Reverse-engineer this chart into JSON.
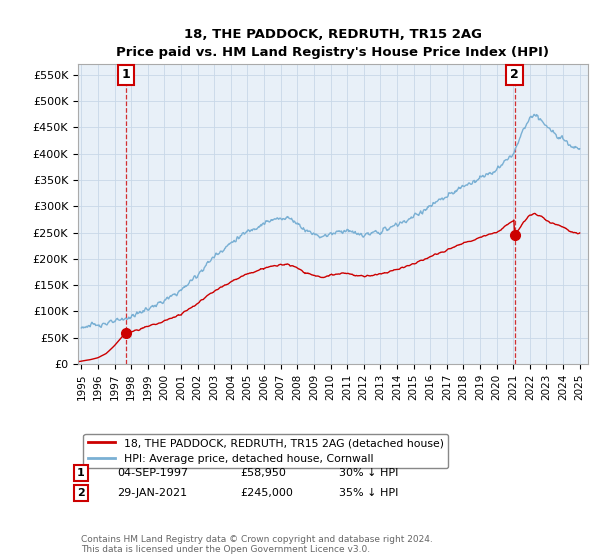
{
  "title": "18, THE PADDOCK, REDRUTH, TR15 2AG",
  "subtitle": "Price paid vs. HM Land Registry's House Price Index (HPI)",
  "ylabel_ticks": [
    "£0",
    "£50K",
    "£100K",
    "£150K",
    "£200K",
    "£250K",
    "£300K",
    "£350K",
    "£400K",
    "£450K",
    "£500K",
    "£550K"
  ],
  "ytick_values": [
    0,
    50000,
    100000,
    150000,
    200000,
    250000,
    300000,
    350000,
    400000,
    450000,
    500000,
    550000
  ],
  "ylim": [
    0,
    570000
  ],
  "xlim_start": 1994.8,
  "xlim_end": 2025.5,
  "sale1": {
    "date_num": 1997.67,
    "price": 58950,
    "label": "1",
    "date_str": "04-SEP-1997",
    "price_str": "£58,950",
    "hpi_str": "30% ↓ HPI"
  },
  "sale2": {
    "date_num": 2021.08,
    "price": 245000,
    "label": "2",
    "date_str": "29-JAN-2021",
    "price_str": "£245,000",
    "hpi_str": "35% ↓ HPI"
  },
  "hpi_color": "#7ab0d4",
  "price_color": "#cc0000",
  "annotation_color": "#cc0000",
  "grid_color": "#c8d8e8",
  "plot_bg_color": "#e8f0f8",
  "legend_label_red": "18, THE PADDOCK, REDRUTH, TR15 2AG (detached house)",
  "legend_label_blue": "HPI: Average price, detached house, Cornwall",
  "footer": "Contains HM Land Registry data © Crown copyright and database right 2024.\nThis data is licensed under the Open Government Licence v3.0.",
  "xtick_years": [
    1995,
    1996,
    1997,
    1998,
    1999,
    2000,
    2001,
    2002,
    2003,
    2004,
    2005,
    2006,
    2007,
    2008,
    2009,
    2010,
    2011,
    2012,
    2013,
    2014,
    2015,
    2016,
    2017,
    2018,
    2019,
    2020,
    2021,
    2022,
    2023,
    2024,
    2025
  ],
  "background_color": "#ffffff"
}
